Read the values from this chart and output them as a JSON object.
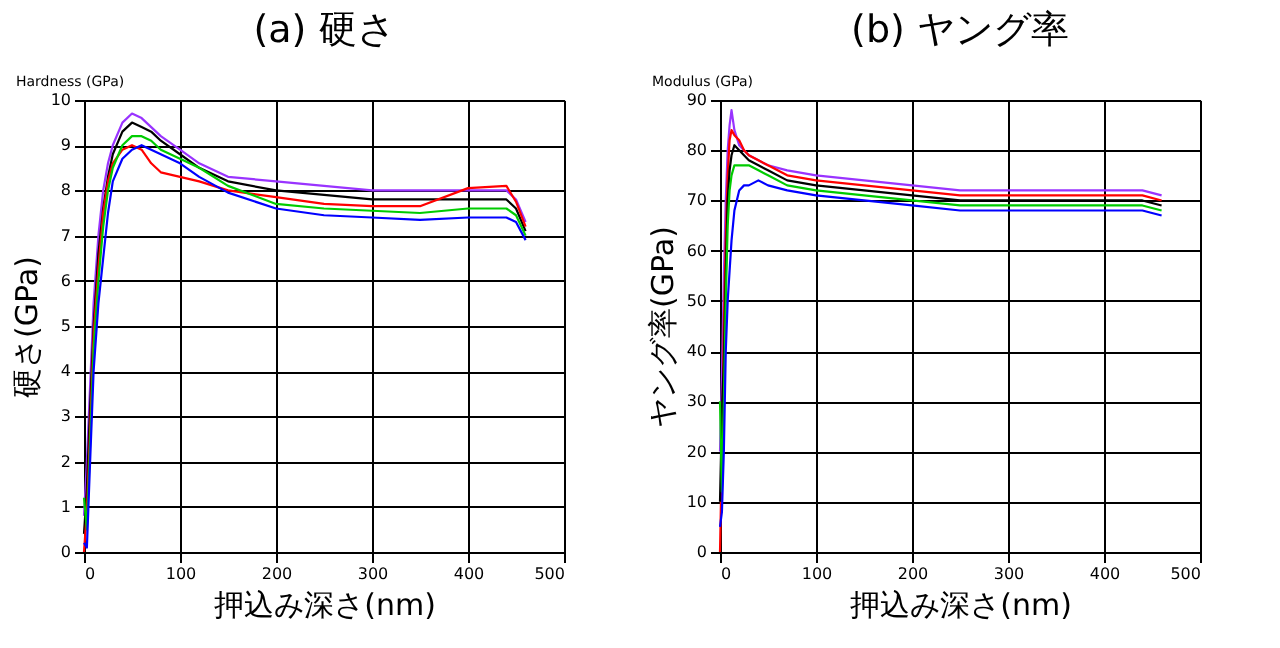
{
  "chart_data": [
    {
      "type": "line",
      "title": "(a)  硬さ",
      "xlabel": "押込み深さ(nm)",
      "ylabel": "硬さ(GPa)",
      "annotations": [
        "Hardness (GPa)"
      ],
      "x": [
        0,
        3,
        6,
        10,
        15,
        20,
        25,
        30,
        40,
        50,
        60,
        70,
        80,
        100,
        120,
        150,
        200,
        250,
        300,
        350,
        400,
        440,
        450,
        460
      ],
      "series": [
        {
          "color": "#9933ff",
          "values": [
            0.8,
            2.0,
            3.5,
            5.5,
            7,
            8,
            8.6,
            9.0,
            9.5,
            9.7,
            9.6,
            9.4,
            9.2,
            8.9,
            8.6,
            8.3,
            8.2,
            8.1,
            8.0,
            8.0,
            8.0,
            8.0,
            7.8,
            7.3
          ]
        },
        {
          "color": "#000000",
          "values": [
            0.4,
            1.4,
            3,
            5,
            6.6,
            7.6,
            8.3,
            8.8,
            9.3,
            9.5,
            9.4,
            9.3,
            9.1,
            8.8,
            8.5,
            8.2,
            8.0,
            7.9,
            7.8,
            7.8,
            7.8,
            7.8,
            7.6,
            7.1
          ]
        },
        {
          "color": "#ff0000",
          "values": [
            0,
            0.9,
            2.5,
            4.8,
            6.3,
            7.5,
            8.2,
            8.6,
            8.9,
            9.0,
            8.9,
            8.6,
            8.4,
            8.3,
            8.2,
            8.0,
            7.85,
            7.7,
            7.65,
            7.65,
            8.05,
            8.1,
            7.75,
            7.2
          ]
        },
        {
          "color": "#00cc00",
          "values": [
            1.2,
            0.5,
            2.2,
            4.5,
            6.0,
            7.2,
            8.0,
            8.5,
            9.0,
            9.2,
            9.2,
            9.1,
            8.9,
            8.7,
            8.5,
            8.1,
            7.7,
            7.6,
            7.55,
            7.5,
            7.6,
            7.6,
            7.45,
            7.0
          ]
        },
        {
          "color": "#0000ff",
          "values": [
            0.2,
            0.1,
            1.8,
            4.0,
            5.5,
            6.5,
            7.5,
            8.2,
            8.7,
            8.9,
            9.0,
            8.9,
            8.8,
            8.6,
            8.3,
            7.95,
            7.6,
            7.45,
            7.4,
            7.35,
            7.4,
            7.4,
            7.3,
            6.9
          ]
        }
      ],
      "xlim": [
        0,
        500
      ],
      "xticks": [
        0,
        100,
        200,
        300,
        400,
        500
      ],
      "ylim": [
        0,
        10
      ],
      "yticks": [
        0,
        1,
        2,
        3,
        4,
        5,
        6,
        7,
        8,
        9,
        10
      ],
      "grid": true,
      "legend": false
    },
    {
      "type": "line",
      "title": "(b)  ヤング率",
      "xlabel": "押込み深さ(nm)",
      "ylabel": "ヤング率(GPa)",
      "annotations": [
        "Modulus (GPa)"
      ],
      "x": [
        0,
        2,
        4,
        6,
        8,
        10,
        12,
        15,
        20,
        25,
        30,
        40,
        50,
        70,
        100,
        150,
        200,
        250,
        300,
        350,
        400,
        440,
        460
      ],
      "series": [
        {
          "color": "#9933ff",
          "values": [
            20,
            35,
            55,
            70,
            80,
            85,
            88,
            84,
            81,
            80,
            79,
            78,
            77,
            76,
            75,
            74,
            73,
            72,
            72,
            72,
            72,
            72,
            71
          ]
        },
        {
          "color": "#ff0000",
          "values": [
            0,
            20,
            45,
            62,
            75,
            82,
            84,
            83,
            82,
            80,
            79,
            78,
            77,
            75,
            74,
            73,
            72,
            71,
            71,
            71,
            71,
            71,
            70
          ]
        },
        {
          "color": "#000000",
          "values": [
            10,
            28,
            38,
            55,
            70,
            76,
            79,
            81,
            80,
            79,
            78,
            77,
            76,
            74,
            73,
            72,
            71,
            70,
            70,
            70,
            70,
            70,
            69
          ]
        },
        {
          "color": "#00cc00",
          "values": [
            30,
            12,
            30,
            50,
            65,
            72,
            75,
            77,
            77,
            77,
            77,
            76,
            75,
            73,
            72,
            71,
            70,
            69,
            69,
            69,
            69,
            69,
            68
          ]
        },
        {
          "color": "#0000ff",
          "values": [
            5,
            8,
            20,
            40,
            50,
            56,
            62,
            68,
            72,
            73,
            73,
            74,
            73,
            72,
            71,
            70,
            69,
            68,
            68,
            68,
            68,
            68,
            67
          ]
        }
      ],
      "xlim": [
        0,
        500
      ],
      "xticks": [
        0,
        100,
        200,
        300,
        400,
        500
      ],
      "ylim": [
        0,
        90
      ],
      "yticks": [
        0,
        10,
        20,
        30,
        40,
        50,
        60,
        70,
        80,
        90
      ],
      "grid": true,
      "legend": false
    }
  ]
}
